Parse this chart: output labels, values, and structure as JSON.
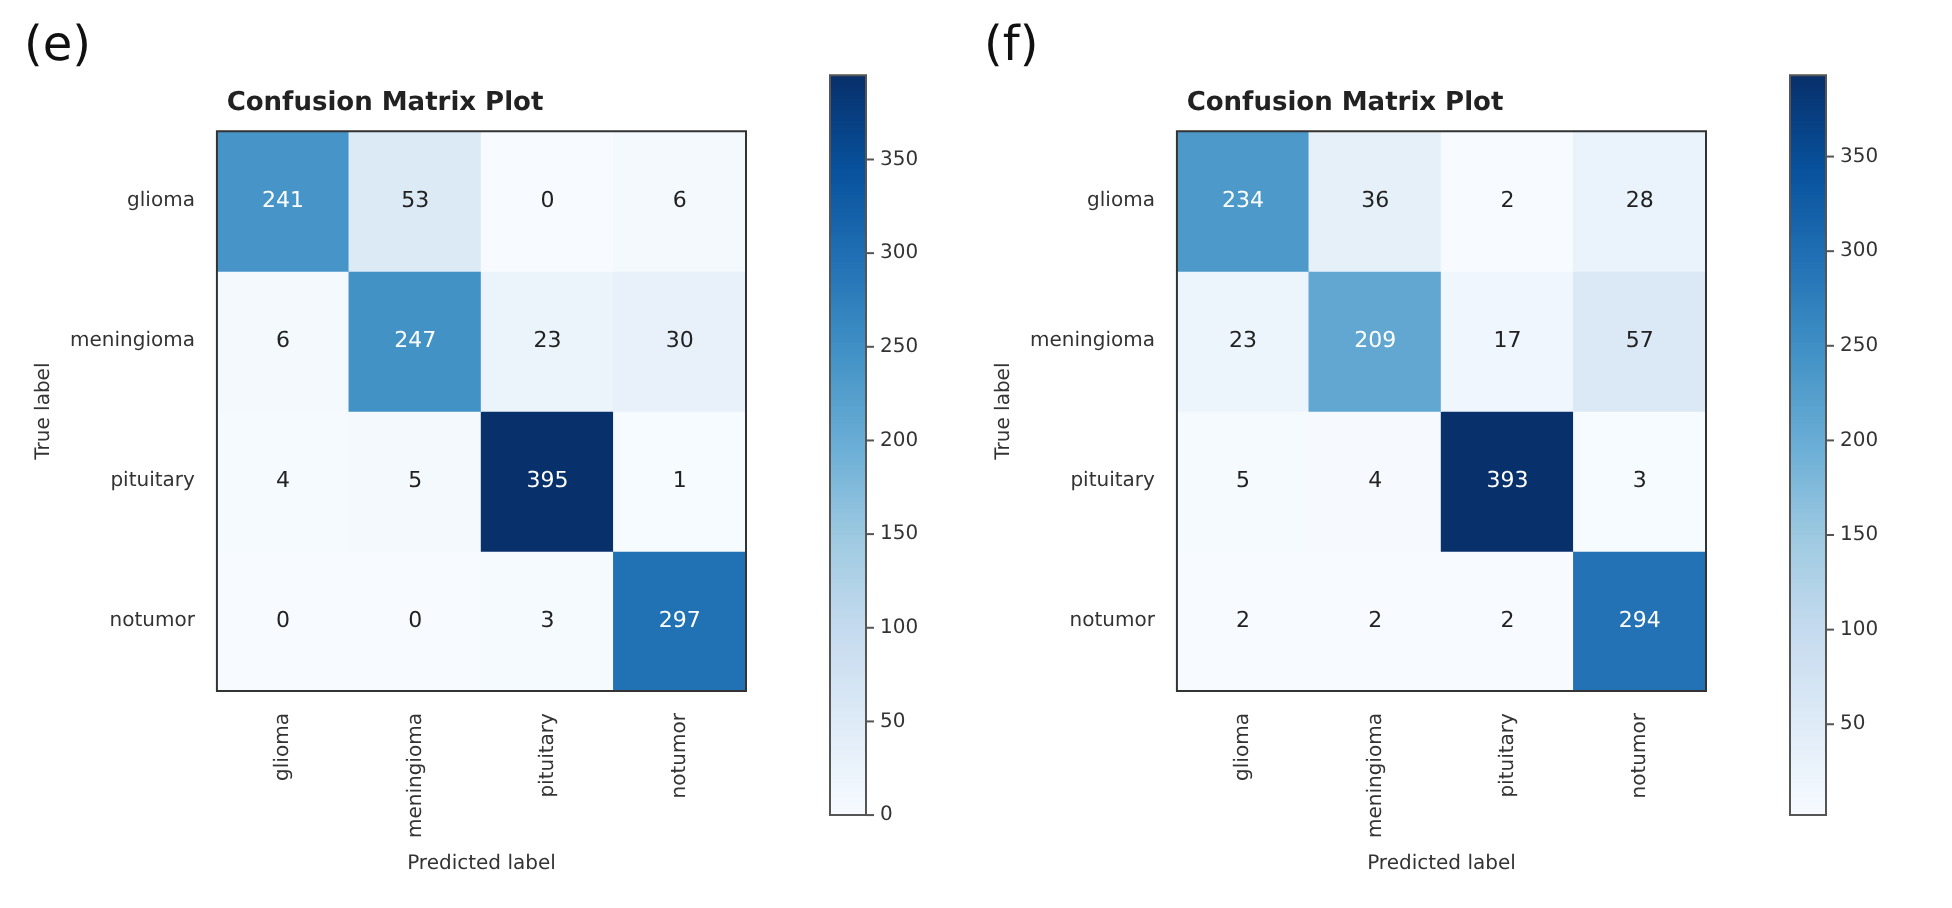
{
  "chart_data": [
    {
      "type": "heatmap",
      "title": "Confusion Matrix Plot",
      "xlabel": "Predicted label",
      "ylabel": "True label",
      "annotations": [
        "(e)"
      ],
      "categories": [
        "glioma",
        "meningioma",
        "pituitary",
        "notumor"
      ],
      "y_categories": [
        "glioma",
        "meningioma",
        "pituitary",
        "notumor"
      ],
      "cells": [
        [
          241,
          53,
          0,
          6
        ],
        [
          6,
          247,
          23,
          30
        ],
        [
          4,
          5,
          395,
          1
        ],
        [
          0,
          0,
          3,
          297
        ]
      ],
      "clim": [
        0,
        395
      ],
      "cticks": [
        0,
        50,
        100,
        150,
        200,
        250,
        300,
        350
      ],
      "data_labels": true
    },
    {
      "type": "heatmap",
      "title": "Confusion Matrix Plot",
      "xlabel": "Predicted label",
      "ylabel": "True label",
      "annotations": [
        "(f)"
      ],
      "categories": [
        "glioma",
        "meningioma",
        "pituitary",
        "notumor"
      ],
      "y_categories": [
        "glioma",
        "meningioma",
        "pituitary",
        "notumor"
      ],
      "cells": [
        [
          234,
          36,
          2,
          28
        ],
        [
          23,
          209,
          17,
          57
        ],
        [
          5,
          4,
          393,
          3
        ],
        [
          2,
          2,
          2,
          294
        ]
      ],
      "clim": [
        2,
        393
      ],
      "cticks": [
        50,
        100,
        150,
        200,
        250,
        300,
        350
      ],
      "data_labels": true
    }
  ]
}
